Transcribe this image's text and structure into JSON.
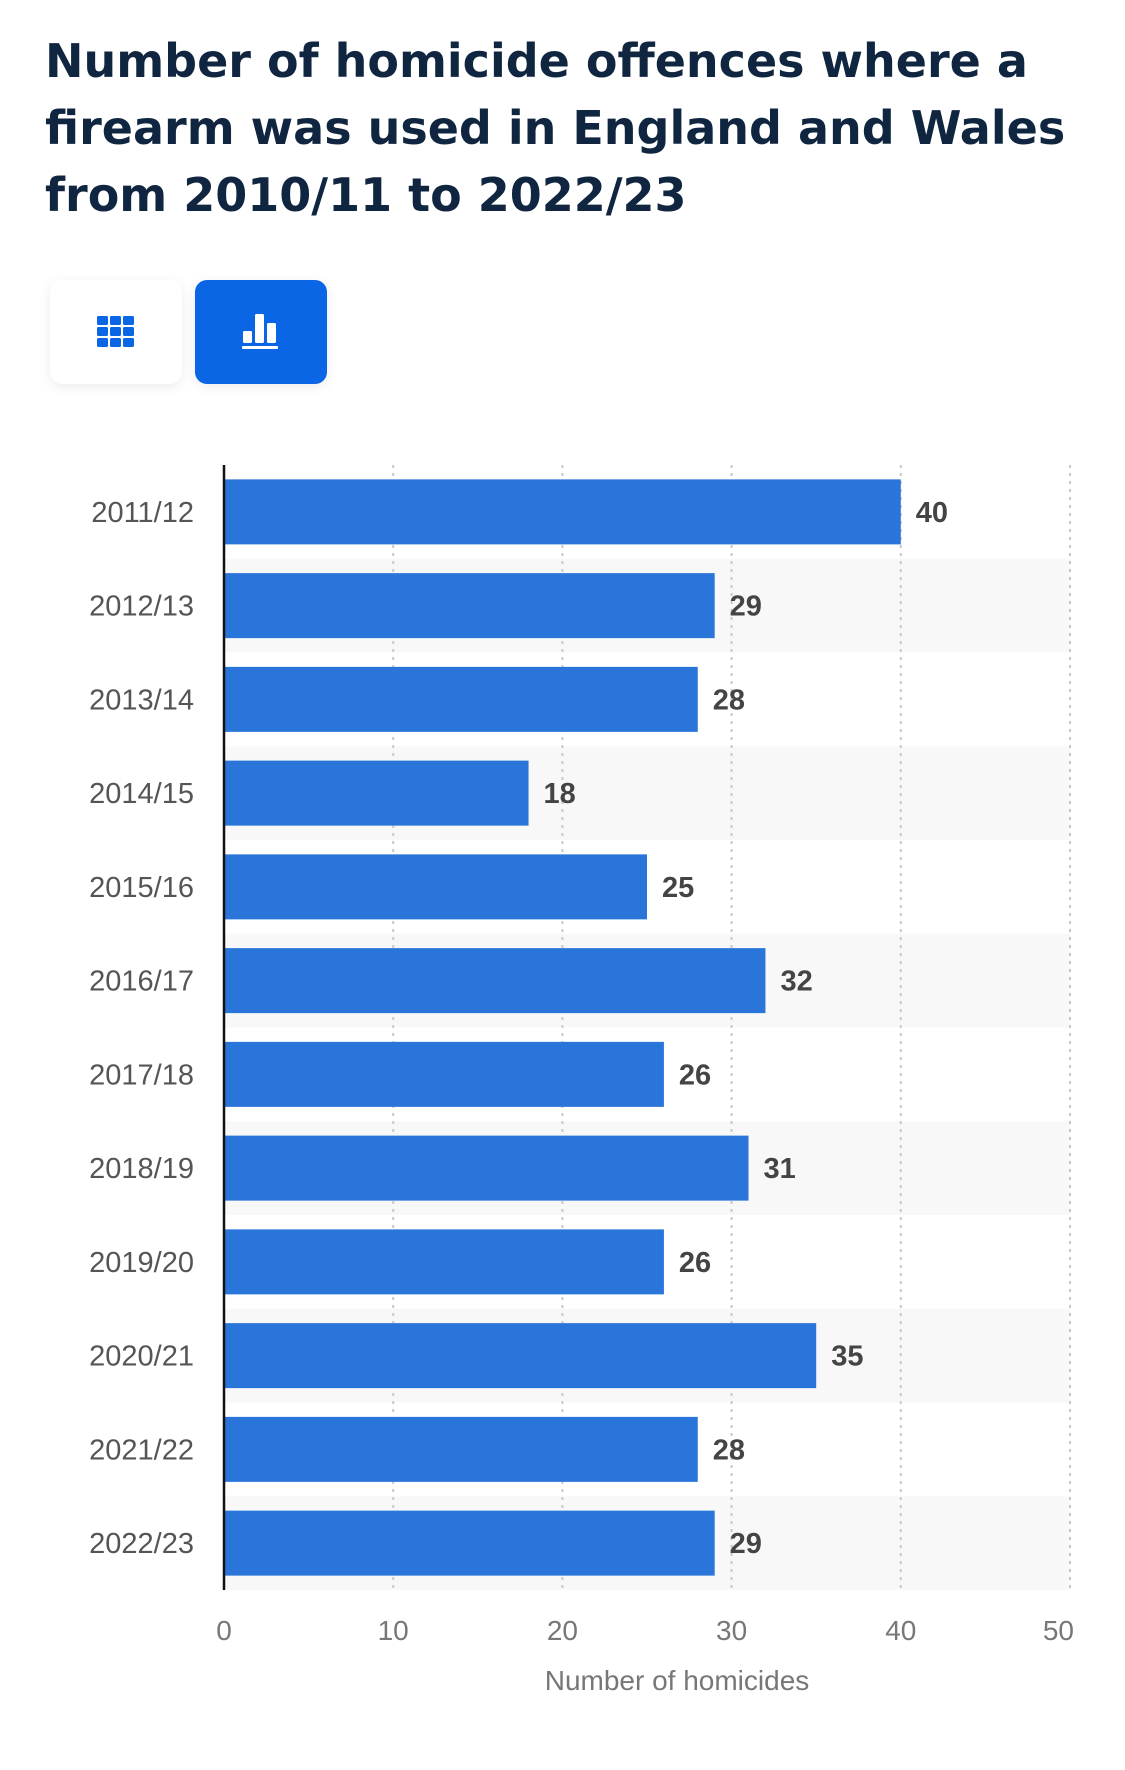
{
  "chart_data": {
    "type": "bar",
    "orientation": "horizontal",
    "title": "Number of homicide offences where a firearm was used in England and Wales from 2010/11 to 2022/23",
    "categories": [
      "2011/12",
      "2012/13",
      "2013/14",
      "2014/15",
      "2015/16",
      "2016/17",
      "2017/18",
      "2018/19",
      "2019/20",
      "2020/21",
      "2021/22",
      "2022/23"
    ],
    "values": [
      40,
      29,
      28,
      18,
      25,
      32,
      26,
      31,
      26,
      35,
      28,
      29
    ],
    "xlabel": "Number of homicides",
    "ylabel": "",
    "xlim": [
      0,
      50
    ],
    "xticks": [
      0,
      10,
      20,
      30,
      40,
      50
    ],
    "grid": true,
    "bar_color": "#2a75d9"
  },
  "toolbar": {
    "table_icon": "grid-table-icon",
    "chart_icon": "bar-chart-icon",
    "active_color": "#0a66e4"
  }
}
